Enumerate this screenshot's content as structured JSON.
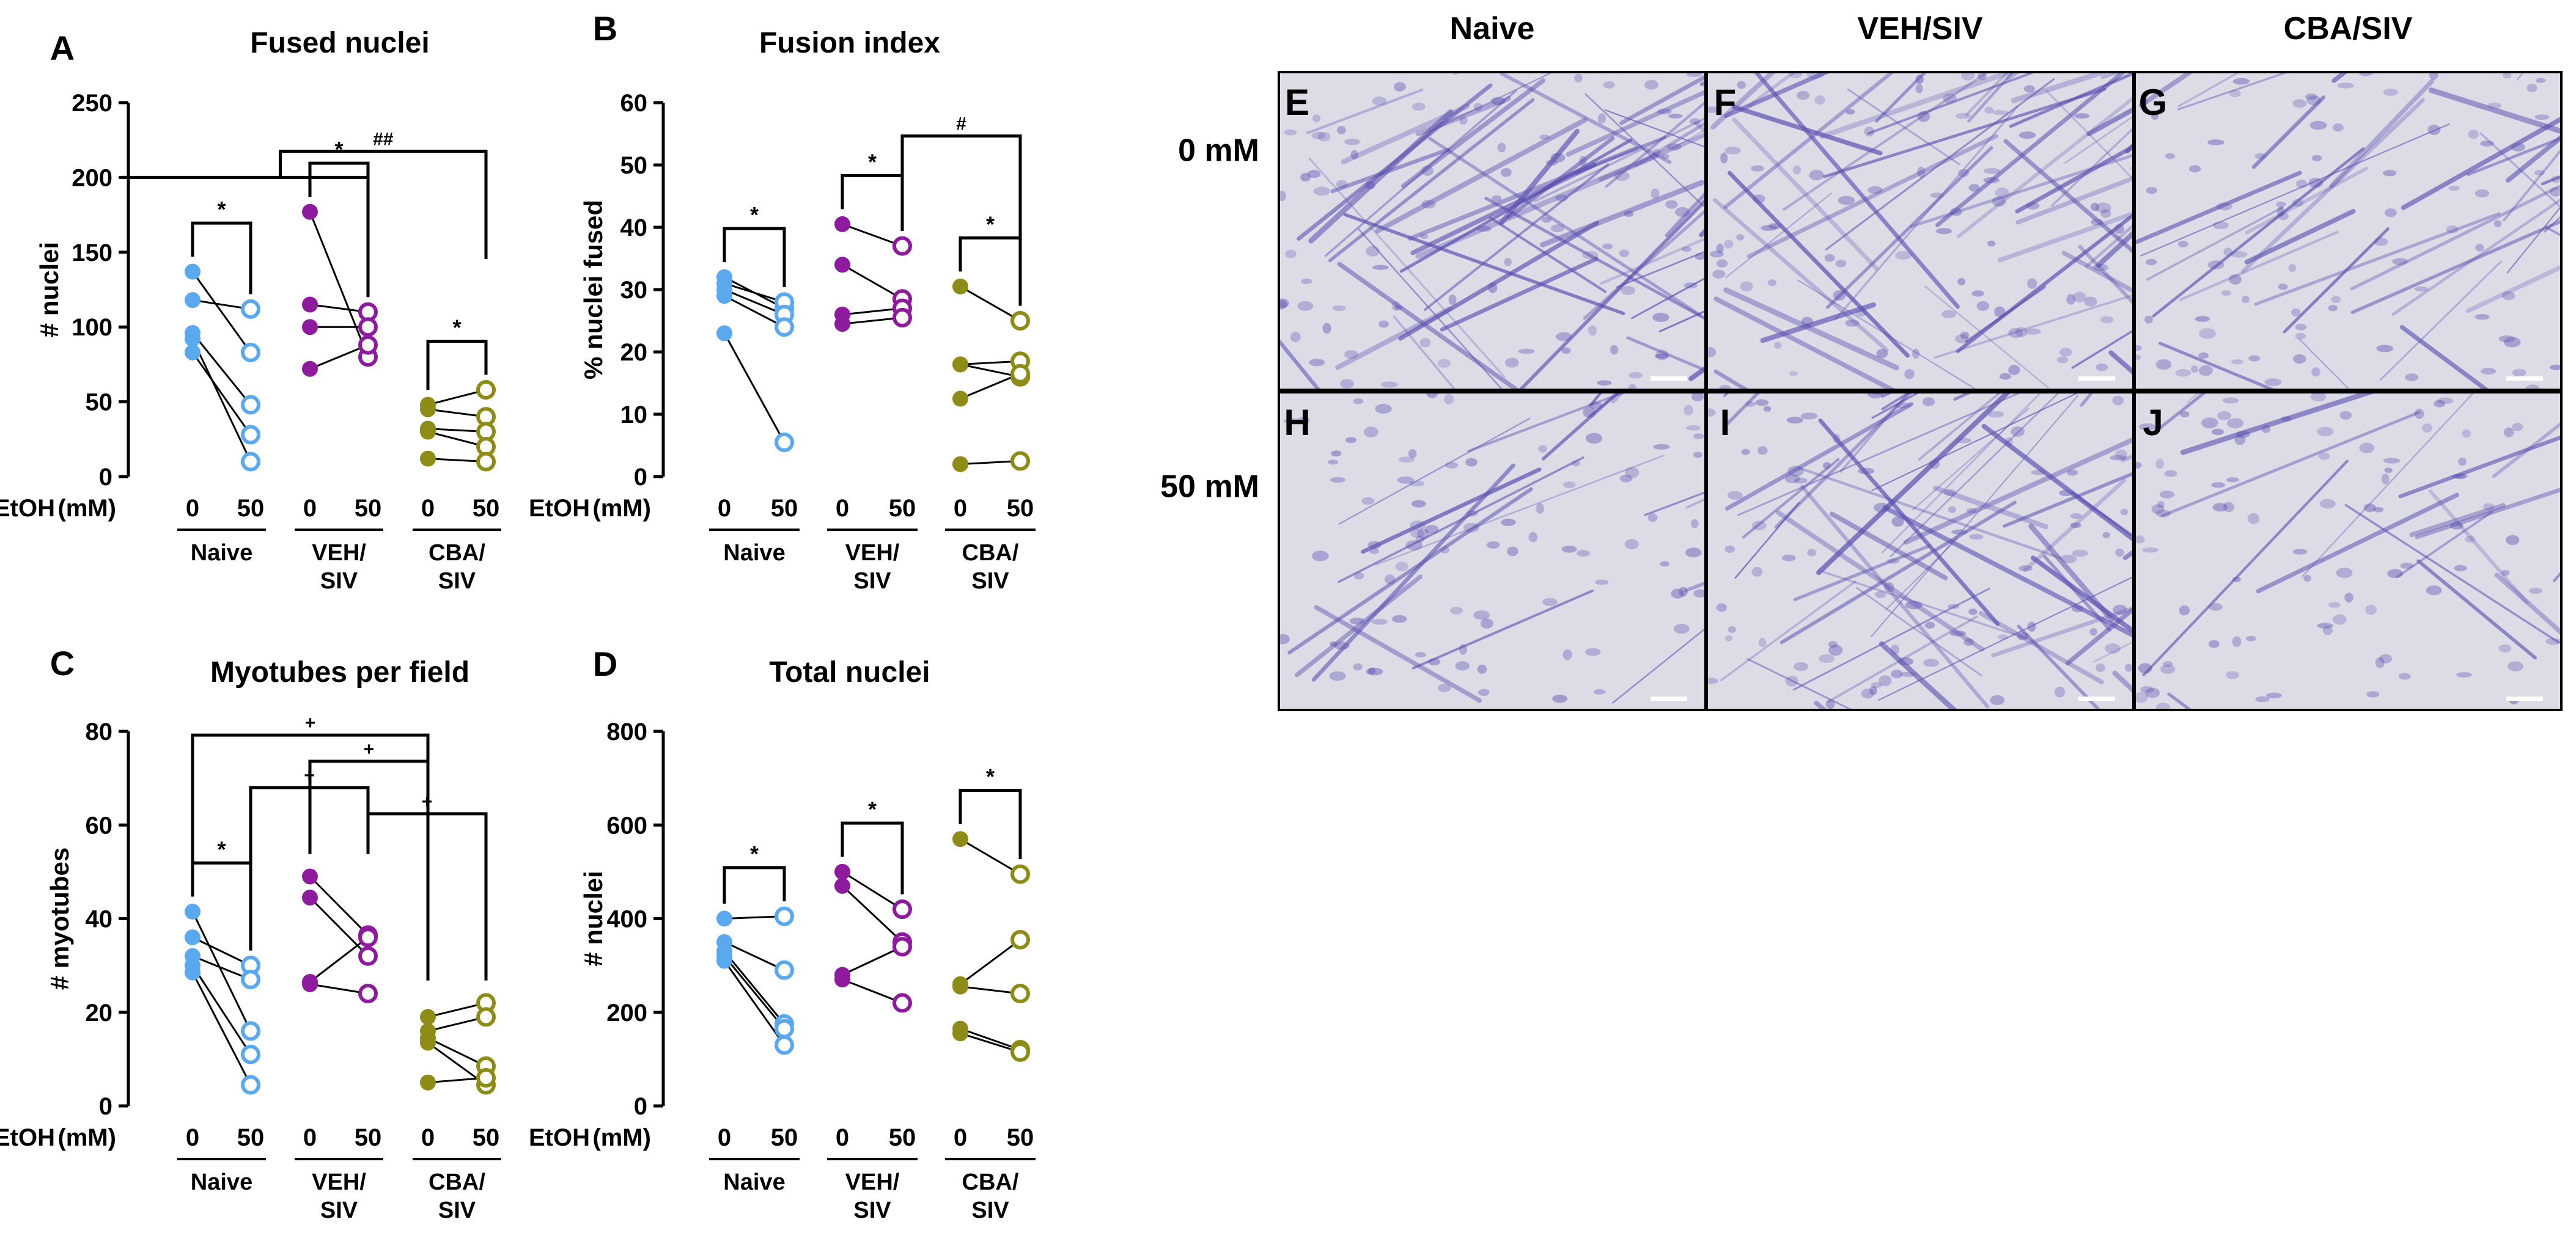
{
  "colors": {
    "naive": "#5aa8ee",
    "veh_siv": "#8e1b9e",
    "cba_siv": "#8c8c16",
    "line": "#000000",
    "stain": "#5a4fb0",
    "micro_bg": "#dcdbe6"
  },
  "ethanol_label": "EtOH",
  "ethanol_unit": "(mM)",
  "dose_labels": [
    "0",
    "50"
  ],
  "groups": [
    {
      "key": "naive",
      "label_lines": [
        "Naive"
      ]
    },
    {
      "key": "veh_siv",
      "label_lines": [
        "VEH/",
        "SIV"
      ]
    },
    {
      "key": "cba_siv",
      "label_lines": [
        "CBA/",
        "SIV"
      ]
    }
  ],
  "chart_data": [
    {
      "panel": "A",
      "type": "scatter",
      "subtype": "paired before-after",
      "title": "Fused nuclei",
      "ylabel": "# nuclei",
      "ylim": [
        0,
        250
      ],
      "yticks": [
        0,
        50,
        100,
        150,
        200,
        250
      ],
      "series": [
        {
          "group": "naive",
          "pairs": [
            [
              137,
              83
            ],
            [
              118,
              112
            ],
            [
              96,
              48
            ],
            [
              83,
              28
            ],
            [
              92,
              10
            ]
          ]
        },
        {
          "group": "veh_siv",
          "pairs": [
            [
              177,
              80
            ],
            [
              115,
              110
            ],
            [
              100,
              100
            ],
            [
              72,
              88
            ]
          ]
        },
        {
          "group": "cba_siv",
          "pairs": [
            [
              48,
              58
            ],
            [
              45,
              40
            ],
            [
              32,
              30
            ],
            [
              30,
              20
            ],
            [
              12,
              10
            ]
          ]
        }
      ],
      "annotations": [
        {
          "type": "within",
          "group": "naive",
          "symbol": "*"
        },
        {
          "type": "within",
          "group": "veh_siv",
          "symbol": "*"
        },
        {
          "type": "within",
          "group": "cba_siv",
          "symbol": "*"
        },
        {
          "type": "nested",
          "from_group": "naive",
          "to_group": "veh_siv",
          "target_group": "cba_siv",
          "symbol": "##"
        }
      ]
    },
    {
      "panel": "B",
      "type": "scatter",
      "subtype": "paired before-after",
      "title": "Fusion index",
      "ylabel": "% nuclei fused",
      "ylim": [
        0,
        60
      ],
      "yticks": [
        0,
        10,
        20,
        30,
        40,
        50,
        60
      ],
      "series": [
        {
          "group": "naive",
          "pairs": [
            [
              32,
              27
            ],
            [
              31,
              28
            ],
            [
              30,
              26
            ],
            [
              29,
              24
            ],
            [
              23,
              5.5
            ]
          ]
        },
        {
          "group": "veh_siv",
          "pairs": [
            [
              40.5,
              37
            ],
            [
              34,
              28.5
            ],
            [
              26,
              27
            ],
            [
              24.5,
              25.5
            ]
          ]
        },
        {
          "group": "cba_siv",
          "pairs": [
            [
              30.5,
              25
            ],
            [
              18,
              18.5
            ],
            [
              18,
              16
            ],
            [
              12.5,
              16.5
            ],
            [
              2,
              2.5
            ]
          ]
        }
      ],
      "annotations": [
        {
          "type": "within",
          "group": "naive",
          "symbol": "*"
        },
        {
          "type": "within",
          "group": "veh_siv",
          "symbol": "*"
        },
        {
          "type": "within",
          "group": "cba_siv",
          "symbol": "*"
        },
        {
          "type": "between",
          "from_group": "veh_siv",
          "to_group": "cba_siv",
          "symbol": "#"
        }
      ]
    },
    {
      "panel": "C",
      "type": "scatter",
      "subtype": "paired before-after",
      "title": "Myotubes per field",
      "ylabel": "# myotubes",
      "ylim": [
        0,
        80
      ],
      "yticks": [
        0,
        20,
        40,
        60,
        80
      ],
      "series": [
        {
          "group": "naive",
          "pairs": [
            [
              41.5,
              16
            ],
            [
              36,
              30
            ],
            [
              32,
              27
            ],
            [
              30,
              11
            ],
            [
              28.5,
              4.5
            ]
          ]
        },
        {
          "group": "veh_siv",
          "pairs": [
            [
              49,
              36.5
            ],
            [
              44.5,
              32
            ],
            [
              26.5,
              36
            ],
            [
              26,
              24
            ]
          ]
        },
        {
          "group": "cba_siv",
          "pairs": [
            [
              19,
              22
            ],
            [
              16,
              19
            ],
            [
              14.5,
              8.5
            ],
            [
              13.5,
              4.5
            ],
            [
              5,
              6
            ]
          ]
        }
      ],
      "annotations": [
        {
          "type": "within",
          "group": "naive",
          "symbol": "*"
        },
        {
          "type": "between",
          "from_group": "naive",
          "to_group": "cba_siv",
          "dose": "0",
          "symbol": "+"
        },
        {
          "type": "between",
          "from_group": "veh_siv",
          "to_group": "cba_siv",
          "dose": "0",
          "symbol": "+"
        },
        {
          "type": "between",
          "from_group": "naive",
          "to_group": "veh_siv",
          "dose": "50",
          "symbol": "+"
        },
        {
          "type": "between",
          "from_group": "veh_siv",
          "to_group": "cba_siv",
          "dose": "50",
          "symbol": "+"
        }
      ]
    },
    {
      "panel": "D",
      "type": "scatter",
      "subtype": "paired before-after",
      "title": "Total nuclei",
      "ylabel": "# nuclei",
      "ylim": [
        0,
        800
      ],
      "yticks": [
        0,
        200,
        400,
        600,
        800
      ],
      "series": [
        {
          "group": "naive",
          "pairs": [
            [
              400,
              405
            ],
            [
              350,
              290
            ],
            [
              330,
              175
            ],
            [
              320,
              165
            ],
            [
              310,
              130
            ]
          ]
        },
        {
          "group": "veh_siv",
          "pairs": [
            [
              500,
              420
            ],
            [
              470,
              350
            ],
            [
              280,
              340
            ],
            [
              270,
              220
            ]
          ]
        },
        {
          "group": "cba_siv",
          "pairs": [
            [
              570,
              495
            ],
            [
              260,
              355
            ],
            [
              255,
              240
            ],
            [
              165,
              120
            ],
            [
              155,
              115
            ]
          ]
        }
      ],
      "annotations": [
        {
          "type": "within",
          "group": "naive",
          "symbol": "*"
        },
        {
          "type": "within",
          "group": "veh_siv",
          "symbol": "*"
        },
        {
          "type": "within",
          "group": "cba_siv",
          "symbol": "*"
        }
      ]
    }
  ],
  "micrographs": {
    "column_titles": [
      "Naive",
      "VEH/SIV",
      "CBA/SIV"
    ],
    "row_titles": [
      "0 mM",
      "50 mM"
    ],
    "panels": [
      {
        "letter": "E",
        "row": 0,
        "col": 0,
        "myotube_density": "high"
      },
      {
        "letter": "F",
        "row": 0,
        "col": 1,
        "myotube_density": "high"
      },
      {
        "letter": "G",
        "row": 0,
        "col": 2,
        "myotube_density": "medium"
      },
      {
        "letter": "H",
        "row": 1,
        "col": 0,
        "myotube_density": "low"
      },
      {
        "letter": "I",
        "row": 1,
        "col": 1,
        "myotube_density": "high"
      },
      {
        "letter": "J",
        "row": 1,
        "col": 2,
        "myotube_density": "low"
      }
    ]
  }
}
